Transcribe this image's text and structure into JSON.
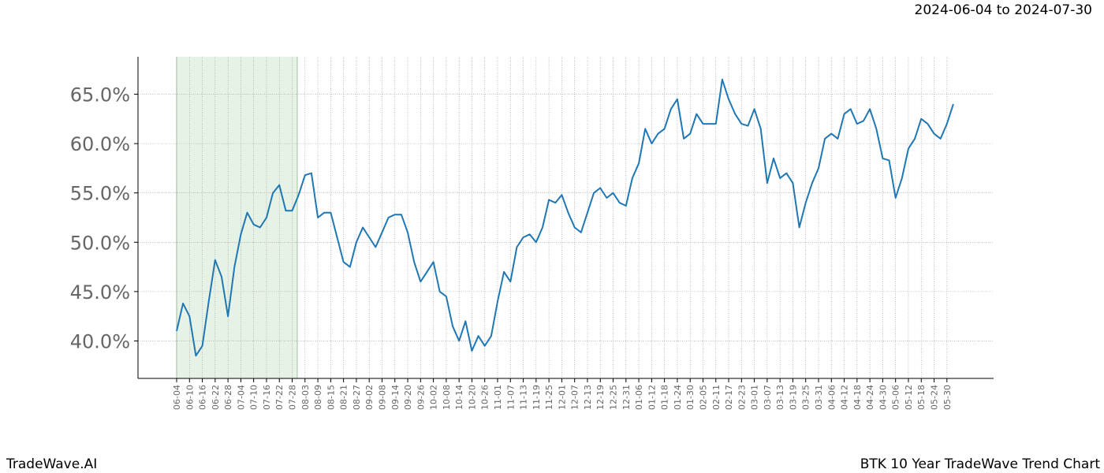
{
  "chart_data": {
    "type": "line",
    "range_label": "2024-06-04 to 2024-07-30",
    "brand": "TradeWave.AI",
    "title": "BTK 10 Year TradeWave Trend Chart",
    "categories": [
      "06-04",
      null,
      "06-10",
      null,
      "06-16",
      null,
      "06-22",
      null,
      "06-28",
      null,
      "07-04",
      null,
      "07-10",
      null,
      "07-16",
      null,
      "07-22",
      null,
      "07-28",
      null,
      "08-03",
      null,
      "08-09",
      null,
      "08-15",
      null,
      "08-21",
      null,
      "08-27",
      null,
      "09-02",
      null,
      "09-08",
      null,
      "09-14",
      null,
      "09-20",
      null,
      "09-26",
      null,
      "10-02",
      null,
      "10-08",
      null,
      "10-14",
      null,
      "10-20",
      null,
      "10-26",
      null,
      "11-01",
      null,
      "11-07",
      null,
      "11-13",
      null,
      "11-19",
      null,
      "11-25",
      null,
      "12-01",
      null,
      "12-07",
      null,
      "12-13",
      null,
      "12-19",
      null,
      "12-25",
      null,
      "12-31",
      null,
      "01-06",
      null,
      "01-12",
      null,
      "01-18",
      null,
      "01-24",
      null,
      "01-30",
      null,
      "02-05",
      null,
      "02-11",
      null,
      "02-17",
      null,
      "02-23",
      null,
      "03-01",
      null,
      "03-07",
      null,
      "03-13",
      null,
      "03-19",
      null,
      "03-25",
      null,
      "03-31",
      null,
      "04-06",
      null,
      "04-12",
      null,
      "04-18",
      null,
      "04-24",
      null,
      "04-30",
      null,
      "05-06",
      null,
      "05-12",
      null,
      "05-18",
      null,
      "05-24",
      null,
      "05-30",
      null
    ],
    "values": [
      41.0,
      43.8,
      42.5,
      38.5,
      39.5,
      44.0,
      48.2,
      46.5,
      42.5,
      47.5,
      50.8,
      53.0,
      51.8,
      51.5,
      52.5,
      55.0,
      55.8,
      53.2,
      53.2,
      54.8,
      56.8,
      57.0,
      52.5,
      53.0,
      53.0,
      50.5,
      48.0,
      47.5,
      50.0,
      51.5,
      50.5,
      49.5,
      51.0,
      52.5,
      52.8,
      52.8,
      51.0,
      48.0,
      46.0,
      47.0,
      48.0,
      45.0,
      44.5,
      41.5,
      40.0,
      42.0,
      39.0,
      40.5,
      39.5,
      40.5,
      44.0,
      47.0,
      46.0,
      49.5,
      50.5,
      50.8,
      50.0,
      51.5,
      54.3,
      54.0,
      54.8,
      53.0,
      51.5,
      51.0,
      53.0,
      55.0,
      55.5,
      54.5,
      55.0,
      54.0,
      53.7,
      56.5,
      58.0,
      61.5,
      60.0,
      61.0,
      61.5,
      63.5,
      64.5,
      60.5,
      61.0,
      63.0,
      62.0,
      62.0,
      62.0,
      66.5,
      64.5,
      63.0,
      62.0,
      61.8,
      63.5,
      61.5,
      56.0,
      58.5,
      56.5,
      57.0,
      56.0,
      51.5,
      54.0,
      56.0,
      57.5,
      60.5,
      61.0,
      60.5,
      63.0,
      63.5,
      62.0,
      62.3,
      63.5,
      61.5,
      58.5,
      58.3,
      54.5,
      56.5,
      59.5,
      60.5,
      62.5,
      62.0,
      61.0,
      60.5,
      62.0,
      64.0
    ],
    "color": "#1f77b4",
    "ylim": [
      36.2,
      68.8
    ],
    "yticks": [
      {
        "value": 40,
        "label": "40.0%"
      },
      {
        "value": 45,
        "label": "45.0%"
      },
      {
        "value": 50,
        "label": "50.0%"
      },
      {
        "value": 55,
        "label": "55.0%"
      },
      {
        "value": 60,
        "label": "60.0%"
      },
      {
        "value": 65,
        "label": "65.0%"
      }
    ],
    "grid": true
  }
}
